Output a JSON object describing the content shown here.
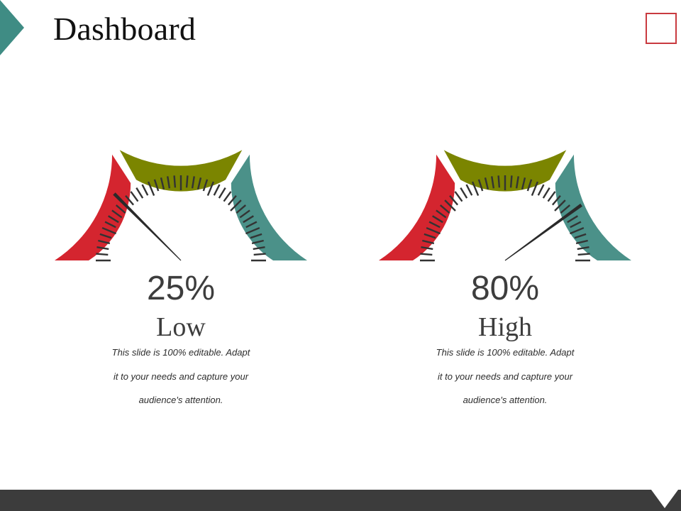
{
  "slide": {
    "title": "Dashboard"
  },
  "gauges": [
    {
      "value": 0.25,
      "percent_label": "25%",
      "level_label": "Low",
      "desc_lines": [
        "This slide is 100% editable. Adapt",
        "it to your needs and capture your",
        "audience's attention."
      ]
    },
    {
      "value": 0.8,
      "percent_label": "80%",
      "level_label": "High",
      "desc_lines": [
        "This slide is 100% editable. Adapt",
        "it to your needs and capture your",
        "audience's attention."
      ]
    }
  ],
  "colors": {
    "low": "#d4252f",
    "mid": "#7b8500",
    "high": "#4b9189",
    "accent": "#3f8c84",
    "needle": "#2a2a2a",
    "footer": "#3c3c3c"
  },
  "icons": [
    "corner-triangle-icon",
    "corner-square-icon"
  ]
}
